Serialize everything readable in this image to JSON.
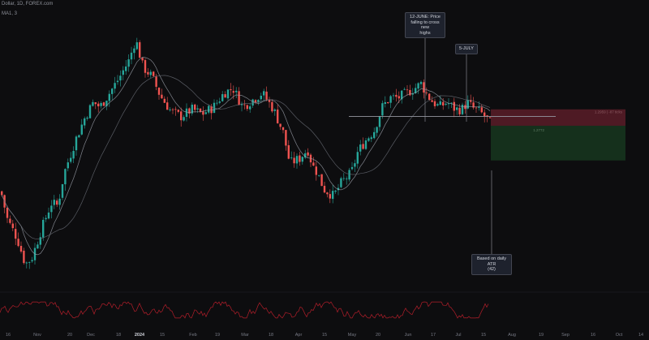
{
  "header": {
    "title": "Dollar, 1D, FOREX.com",
    "indicator": "MA1, 3"
  },
  "annotations": {
    "june": [
      "12-JUNE: Price",
      "falling to cross new",
      "highs"
    ],
    "july": "5-JULY",
    "atr": [
      "Based on daily ATR",
      "(42)"
    ],
    "stop_label": "1.2959 | -87 ticks",
    "target_label": "1.2772"
  },
  "colors": {
    "background": "#0d0d0f",
    "up_candle": "#26a69a",
    "down_candle": "#ef5350",
    "ma_line": "#9ea3ad",
    "stop_zone": "#4e1a24",
    "target_zone": "#15301c",
    "oscillator": "#b21e2a"
  },
  "chart_data": {
    "type": "candlestick",
    "x_ticks": [
      {
        "label": "16"
      },
      {
        "label": "Nov"
      },
      {
        "label": "20"
      },
      {
        "label": "Dec"
      },
      {
        "label": "18"
      },
      {
        "label": "2024",
        "bold": true
      },
      {
        "label": "15"
      },
      {
        "label": "Feb"
      },
      {
        "label": "19"
      },
      {
        "label": "Mar"
      },
      {
        "label": "18"
      },
      {
        "label": "Apr"
      },
      {
        "label": "15"
      },
      {
        "label": "May"
      },
      {
        "label": "20"
      },
      {
        "label": "Jun"
      },
      {
        "label": "17"
      },
      {
        "label": "Jul"
      },
      {
        "label": "15"
      },
      {
        "label": "Aug"
      },
      {
        "label": "19"
      },
      {
        "label": "Sep"
      },
      {
        "label": "16"
      },
      {
        "label": "Oct"
      },
      {
        "label": "14"
      }
    ],
    "price_path": [
      [
        0,
        1.264
      ],
      [
        8,
        1.252
      ],
      [
        20,
        1.244
      ],
      [
        30,
        1.233
      ],
      [
        38,
        1.2355
      ],
      [
        50,
        1.248
      ],
      [
        62,
        1.259
      ],
      [
        70,
        1.258
      ],
      [
        78,
        1.272
      ],
      [
        92,
        1.286
      ],
      [
        104,
        1.296
      ],
      [
        114,
        1.302
      ],
      [
        122,
        1.3
      ],
      [
        132,
        1.305
      ],
      [
        145,
        1.312
      ],
      [
        158,
        1.32
      ],
      [
        166,
        1.329
      ],
      [
        175,
        1.317
      ],
      [
        186,
        1.313
      ],
      [
        196,
        1.305
      ],
      [
        210,
        1.298
      ],
      [
        222,
        1.296
      ],
      [
        236,
        1.299
      ],
      [
        248,
        1.297
      ],
      [
        262,
        1.3
      ],
      [
        275,
        1.306
      ],
      [
        286,
        1.308
      ],
      [
        298,
        1.3
      ],
      [
        310,
        1.303
      ],
      [
        322,
        1.306
      ],
      [
        336,
        1.299
      ],
      [
        348,
        1.289
      ],
      [
        356,
        1.276
      ],
      [
        368,
        1.278
      ],
      [
        378,
        1.282
      ],
      [
        384,
        1.275
      ],
      [
        390,
        1.272
      ],
      [
        398,
        1.265
      ],
      [
        410,
        1.262
      ],
      [
        420,
        1.268
      ],
      [
        432,
        1.272
      ],
      [
        440,
        1.281
      ],
      [
        450,
        1.286
      ],
      [
        460,
        1.29
      ],
      [
        470,
        1.3
      ],
      [
        480,
        1.304
      ],
      [
        490,
        1.304
      ],
      [
        500,
        1.306
      ],
      [
        510,
        1.308
      ],
      [
        518,
        1.31
      ],
      [
        524,
        1.306
      ],
      [
        530,
        1.303
      ],
      [
        540,
        1.3
      ],
      [
        550,
        1.302
      ],
      [
        560,
        1.299
      ],
      [
        568,
        1.299
      ],
      [
        575,
        1.302
      ],
      [
        582,
        1.2995
      ],
      [
        590,
        1.298
      ],
      [
        598,
        1.2955
      ],
      [
        605,
        1.292
      ]
    ],
    "horizontal_level": 1.296,
    "stop_zone": {
      "from": 1.299,
      "to": 1.292
    },
    "target_zone": {
      "from": 1.292,
      "to": 1.2772
    },
    "ylim": [
      1.228,
      1.338
    ]
  }
}
